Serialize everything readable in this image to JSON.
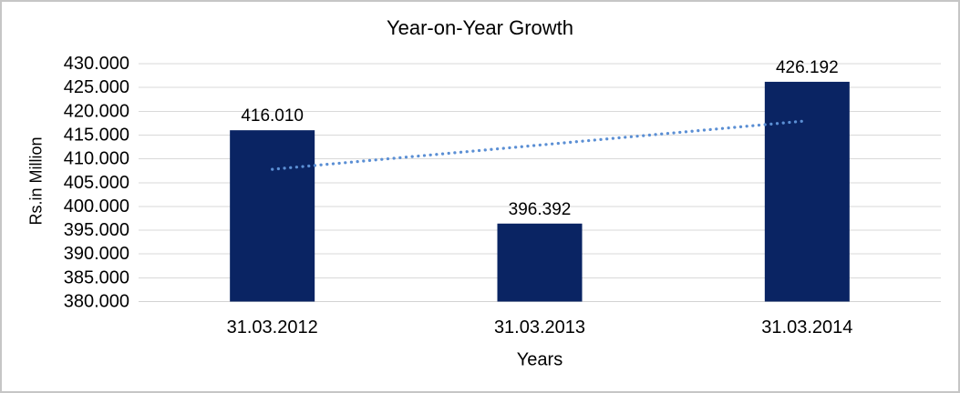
{
  "frame": {
    "background": "#ffffff",
    "border_color": "#c6c6c6"
  },
  "chart_data": {
    "type": "bar",
    "title": "Year-on-Year Growth",
    "xlabel": "Years",
    "ylabel": "Rs.in Million",
    "categories": [
      "31.03.2012",
      "31.03.2013",
      "31.03.2014"
    ],
    "values": [
      416.01,
      396.392,
      426.192
    ],
    "value_labels": [
      "416.010",
      "396.392",
      "426.192"
    ],
    "ylim": [
      380,
      430
    ],
    "ytick_step": 5,
    "ytick_labels": [
      "430.000",
      "425.000",
      "420.000",
      "415.000",
      "410.000",
      "405.000",
      "400.000",
      "395.000",
      "390.000",
      "385.000",
      "380.000"
    ],
    "grid": true,
    "legend": "none",
    "bar_color": "#0a2463",
    "gridline_color": "#d9d9d9",
    "axis_line_color": "#d3d3d3",
    "text_color": "#000000",
    "trendline": {
      "type": "linear",
      "style": "dotted",
      "color": "#5b8fd4",
      "start_value": 407.8,
      "end_value": 418.0
    }
  }
}
